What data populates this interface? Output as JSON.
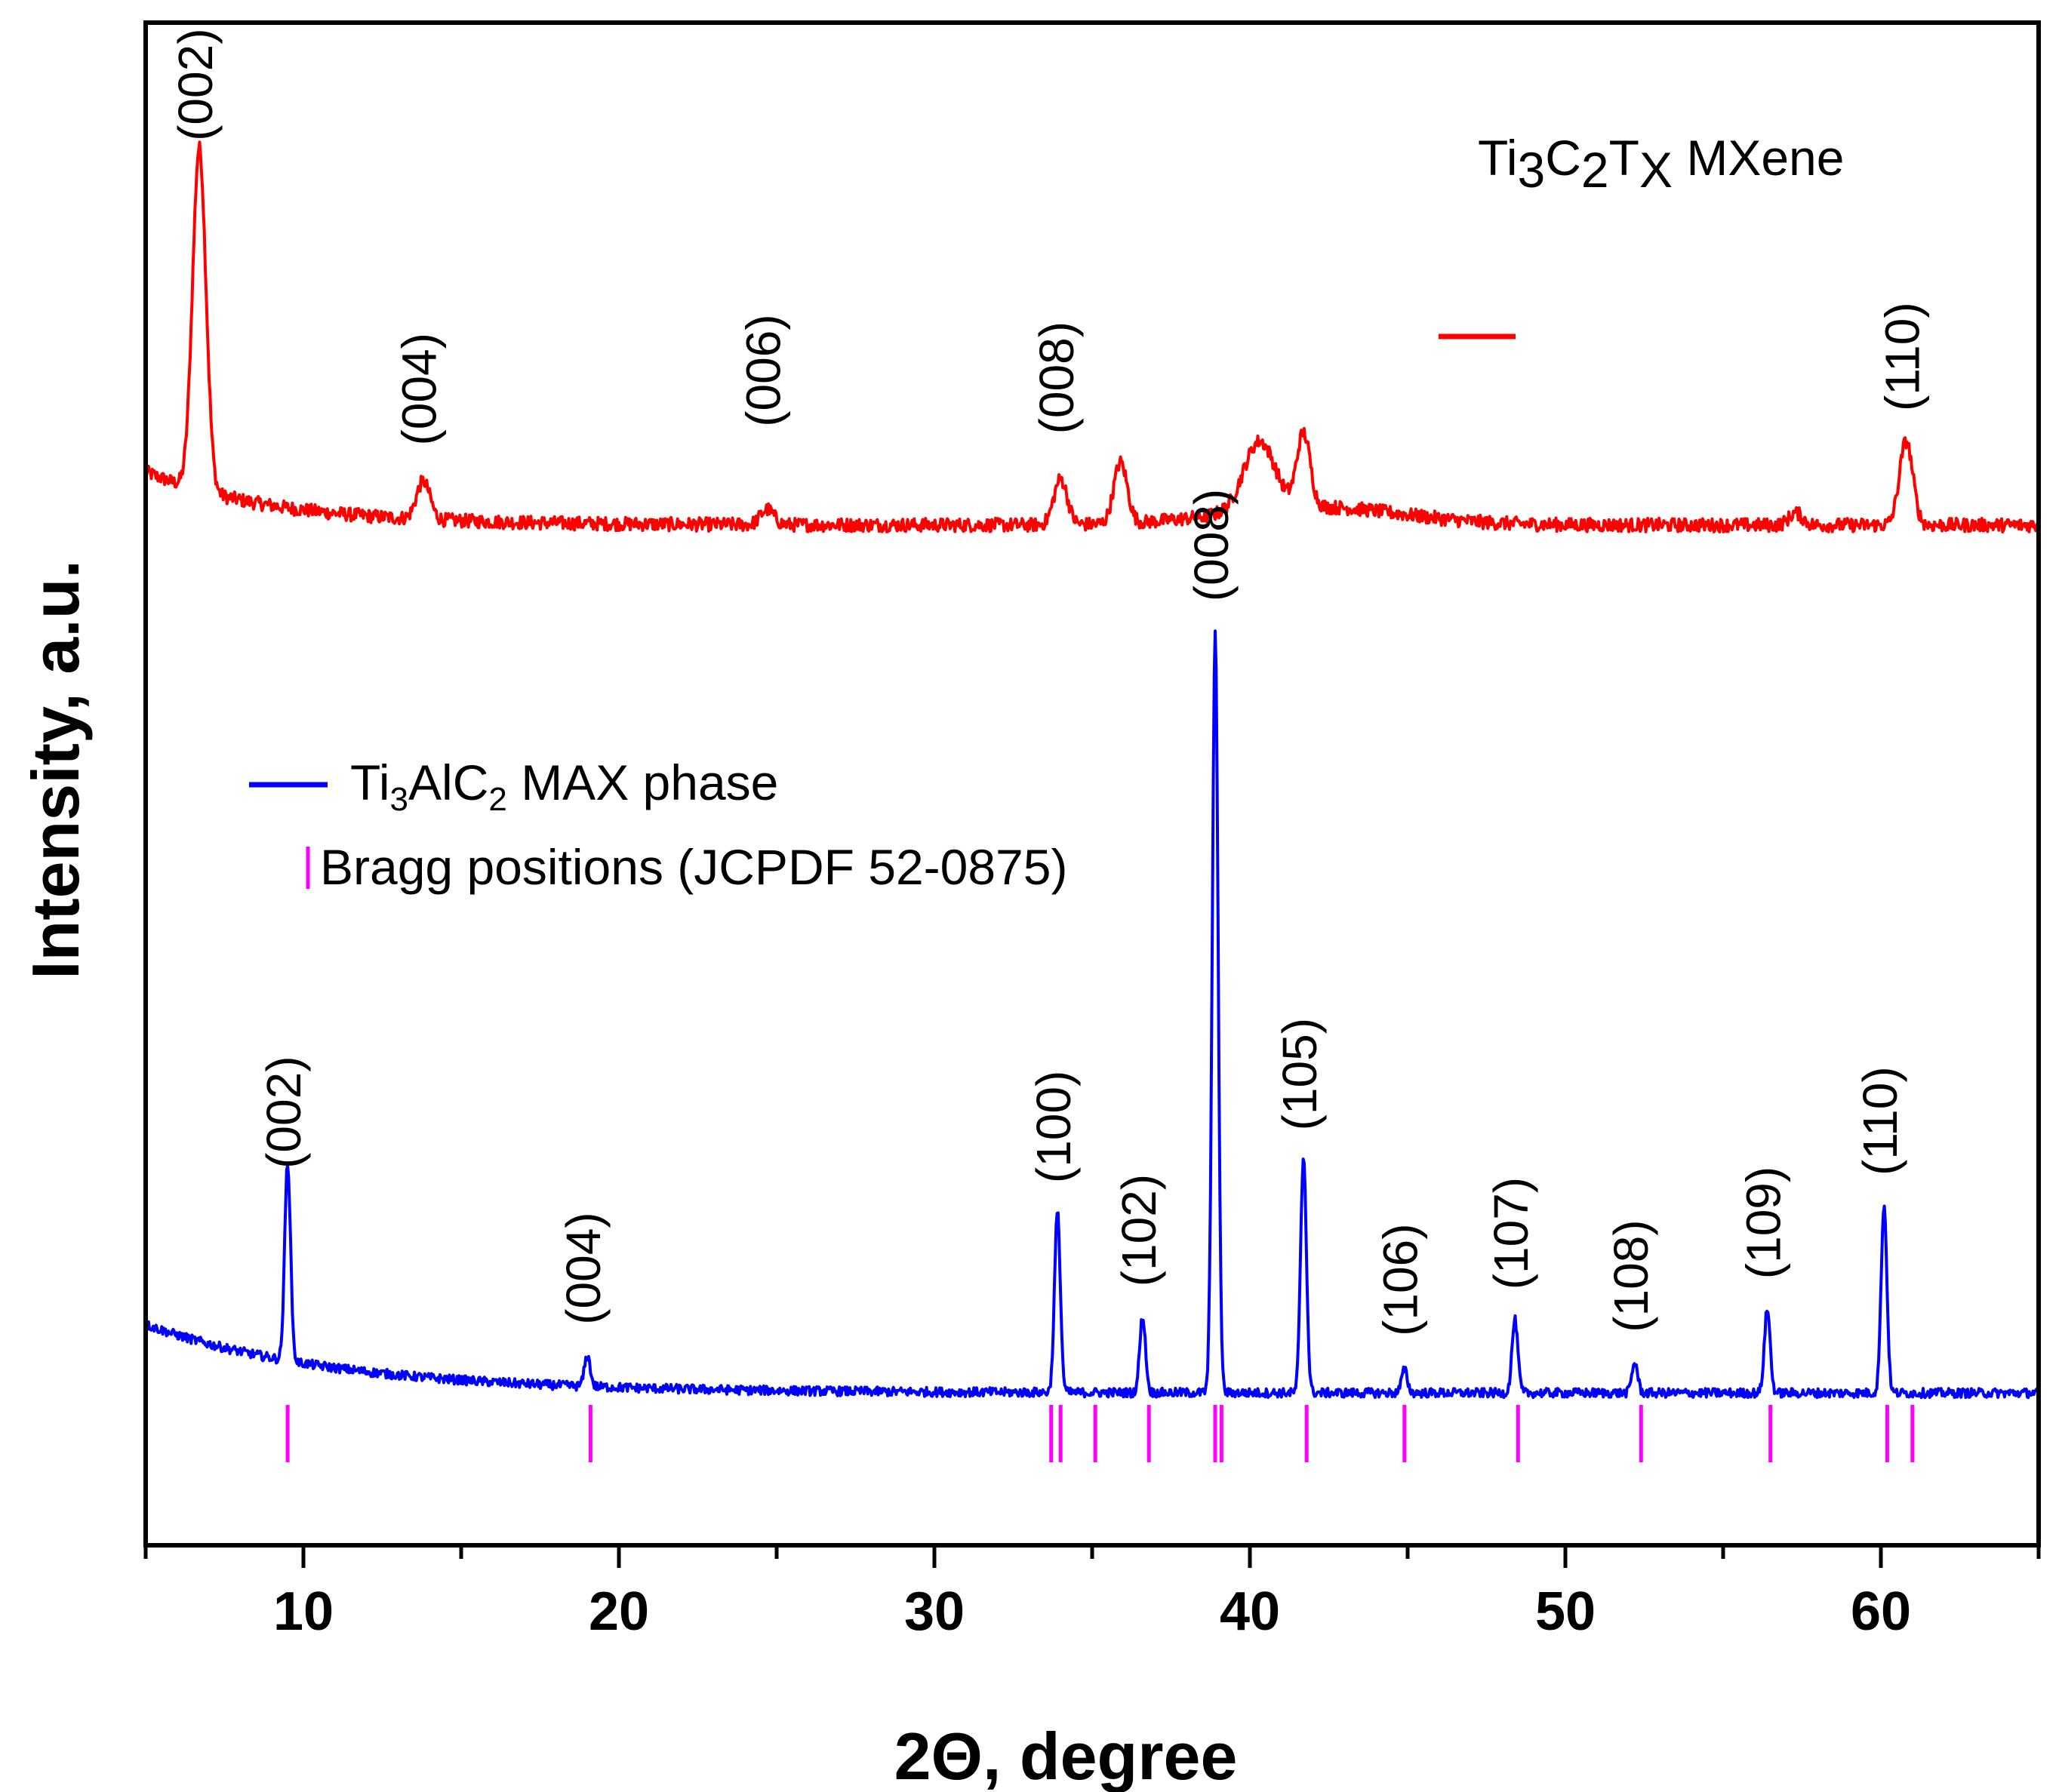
{
  "chart_data": {
    "type": "line",
    "xlabel": "2Θ, degree",
    "ylabel": "Intensity, a.u.",
    "xlim": [
      5,
      65
    ],
    "xticks": [
      10,
      20,
      30,
      40,
      50,
      60
    ],
    "ylim": [
      0,
      100
    ],
    "series": [
      {
        "name": "Ti3C2Tx MXene",
        "legend_main": "Ti",
        "legend_parts": [
          "3",
          "C",
          "2",
          "T",
          "X",
          " MXene"
        ],
        "color": "#ff0000",
        "baseline": 67,
        "peaks": [
          {
            "x": 6.7,
            "y": 89.5,
            "label": "(002)"
          },
          {
            "x": 13.8,
            "y": 69.5,
            "label": "(004)"
          },
          {
            "x": 24.7,
            "y": 68.0,
            "label": "(006)"
          },
          {
            "x": 34.0,
            "y": 70.0,
            "label": "(008)"
          },
          {
            "x": 35.9,
            "y": 71.0,
            "label": ""
          },
          {
            "x": 40.3,
            "y": 71.5,
            "label": ""
          },
          {
            "x": 41.7,
            "y": 71.8,
            "label": ""
          },
          {
            "x": 57.3,
            "y": 67.8,
            "label": ""
          },
          {
            "x": 60.8,
            "y": 72.5,
            "label": "(110)"
          }
        ]
      },
      {
        "name": "Ti3AlC2 MAX phase",
        "legend_main": "Ti",
        "legend_parts": [
          "3",
          "AlC",
          "2",
          " MAX phase"
        ],
        "color": "#0000ff",
        "baseline": 10,
        "peaks": [
          {
            "x": 9.5,
            "y": 23.0,
            "label": "(002)"
          },
          {
            "x": 19.0,
            "y": 12.0,
            "label": "(004)"
          },
          {
            "x": 33.9,
            "y": 21.8,
            "label": "(100)"
          },
          {
            "x": 36.6,
            "y": 15.0,
            "label": "(102)"
          },
          {
            "x": 38.9,
            "y": 60.0,
            "label": "(008)"
          },
          {
            "x": 41.7,
            "y": 25.5,
            "label": "(105)"
          },
          {
            "x": 44.9,
            "y": 11.5,
            "label": "(106)"
          },
          {
            "x": 48.4,
            "y": 14.8,
            "label": "(107)"
          },
          {
            "x": 52.2,
            "y": 12.0,
            "label": "(108)"
          },
          {
            "x": 56.4,
            "y": 15.5,
            "label": "(109)"
          },
          {
            "x": 60.1,
            "y": 22.3,
            "label": "(110)"
          }
        ]
      }
    ],
    "bragg": {
      "label": "Bragg positions (JCPDF 52-0875)",
      "color": "#ff00ff",
      "positions": [
        9.5,
        19.1,
        33.7,
        34.0,
        35.1,
        36.8,
        38.9,
        39.1,
        41.8,
        44.9,
        48.5,
        52.4,
        56.5,
        60.2,
        61.0
      ]
    }
  }
}
